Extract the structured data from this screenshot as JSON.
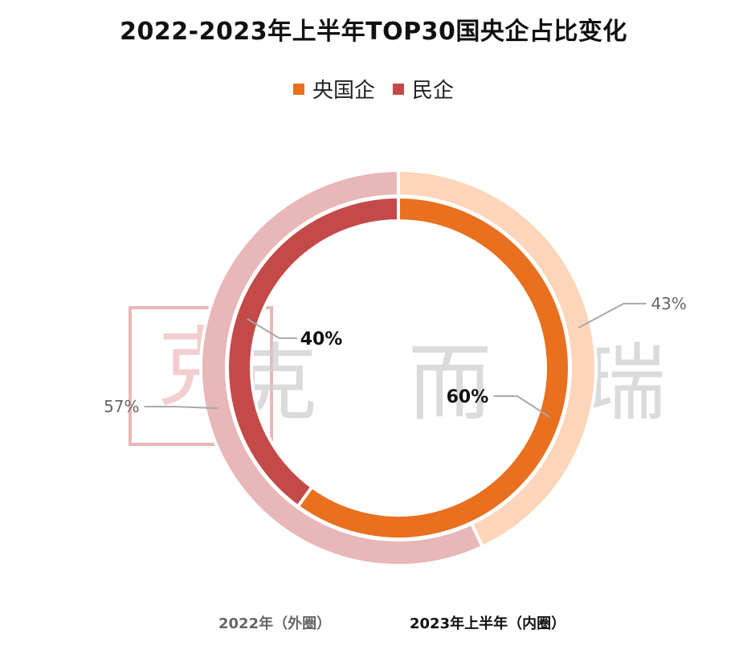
{
  "title": "2022-2023年上半年TOP30国央企占比变化",
  "legend": [
    {
      "label": "央国企",
      "color": "#E8701F"
    },
    {
      "label": "民企",
      "color": "#C44A4A"
    }
  ],
  "watermark": {
    "seal_text": "克而瑞",
    "text": "克 而 瑞"
  },
  "captions": {
    "outer": "2022年（外圈）",
    "inner": "2023年上半年（内圈）"
  },
  "chart_data": {
    "type": "pie",
    "title": "2022-2023年上半年TOP30国央企占比变化",
    "rings": [
      {
        "name": "2022年（外圈）",
        "categories": [
          "央国企",
          "民企"
        ],
        "values": [
          43,
          57
        ],
        "labels": [
          "43%",
          "57%"
        ],
        "colors": [
          "#FDD5BA",
          "#E8B7B8"
        ]
      },
      {
        "name": "2023年上半年（内圈）",
        "categories": [
          "央国企",
          "民企"
        ],
        "values": [
          60,
          40
        ],
        "labels": [
          "60%",
          "40%"
        ],
        "colors": [
          "#E8701F",
          "#C44A4A"
        ]
      }
    ],
    "legend_position": "top"
  }
}
